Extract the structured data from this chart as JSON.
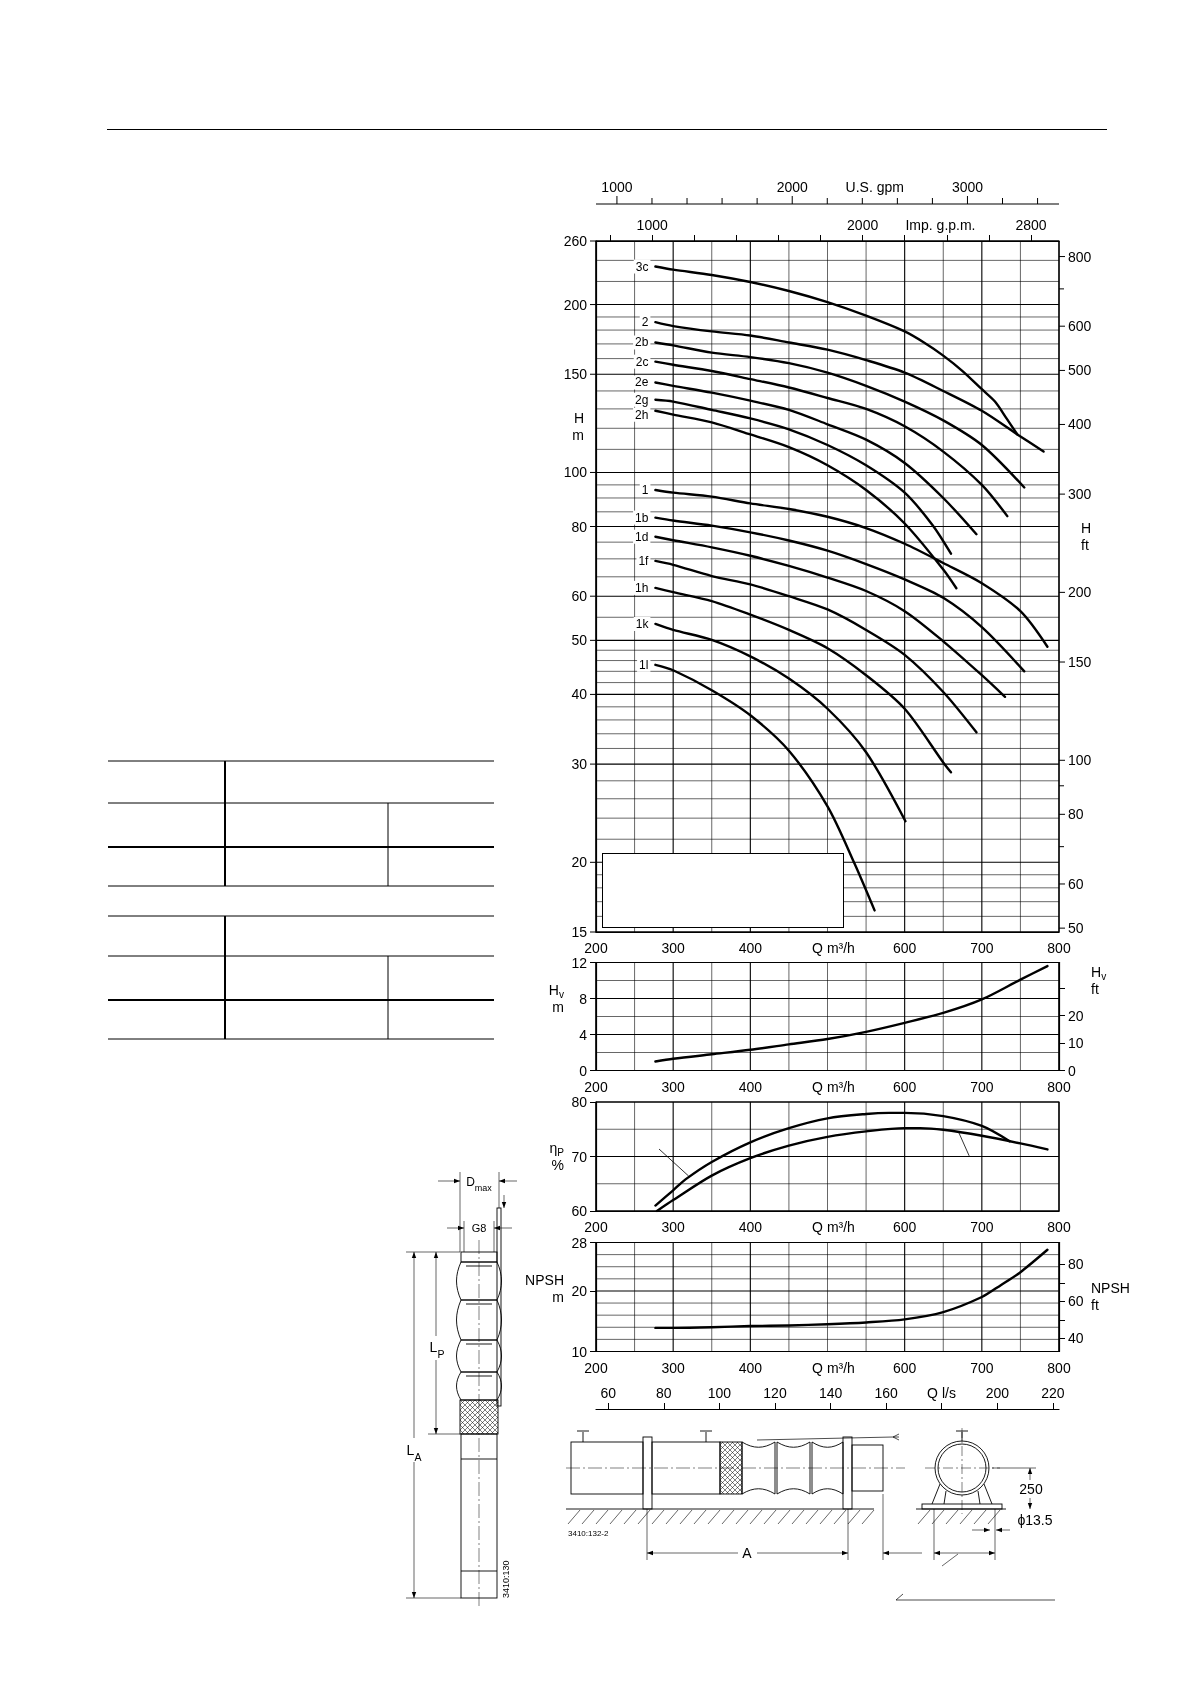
{
  "chart_data": [
    {
      "type": "line",
      "xlabel": "Q m³/h",
      "ylabel": "H\nm",
      "x2label": "Imp. g.p.m.",
      "log": true,
      "grid": true,
      "xlim": [
        200,
        800
      ],
      "xticks": [
        200,
        {
          "value": 250,
          "label": null
        },
        300,
        {
          "value": 350,
          "label": null
        },
        400,
        {
          "value": 450,
          "label": null
        },
        {
          "value": 500,
          "label": null
        },
        {
          "value": 550,
          "label": null
        },
        600,
        {
          "value": 650,
          "label": null
        },
        700,
        {
          "value": 750,
          "label": null
        },
        800
      ],
      "ylim": [
        15,
        260
      ],
      "yticks": [
        15,
        {
          "value": 16,
          "label": null
        },
        {
          "value": 17,
          "label": null
        },
        {
          "value": 18,
          "label": null
        },
        {
          "value": 19,
          "label": null
        },
        20,
        {
          "value": 22,
          "label": null
        },
        {
          "value": 24,
          "label": null
        },
        {
          "value": 26,
          "label": null
        },
        {
          "value": 28,
          "label": null
        },
        30,
        {
          "value": 32,
          "label": null
        },
        {
          "value": 34,
          "label": null
        },
        {
          "value": 36,
          "label": null
        },
        {
          "value": 38,
          "label": null
        },
        40,
        {
          "value": 42,
          "label": null
        },
        {
          "value": 44,
          "label": null
        },
        {
          "value": 46,
          "label": null
        },
        {
          "value": 48,
          "label": null
        },
        50,
        {
          "value": 55,
          "label": null
        },
        60,
        {
          "value": 65,
          "label": null
        },
        {
          "value": 70,
          "label": null
        },
        {
          "value": 75,
          "label": null
        },
        80,
        {
          "value": 85,
          "label": null
        },
        {
          "value": 90,
          "label": null
        },
        {
          "value": 95,
          "label": null
        },
        100,
        {
          "value": 110,
          "label": null
        },
        {
          "value": 120,
          "label": null
        },
        {
          "value": 130,
          "label": null
        },
        {
          "value": 140,
          "label": null
        },
        150,
        {
          "value": 160,
          "label": null
        },
        {
          "value": 170,
          "label": null
        },
        {
          "value": 180,
          "label": null
        },
        {
          "value": 190,
          "label": null
        },
        200,
        {
          "value": 220,
          "label": null
        },
        {
          "value": 240,
          "label": null
        },
        260
      ],
      "x2lim": [
        733,
        2933
      ],
      "x2ticks": [
        {
          "value": 800,
          "label": null
        },
        1000,
        {
          "value": 1200,
          "label": null
        },
        {
          "value": 1400,
          "label": null
        },
        {
          "value": 1600,
          "label": null
        },
        {
          "value": 1800,
          "label": null
        },
        2000,
        {
          "value": 2200,
          "label": null
        },
        {
          "value": 2400,
          "label": null
        },
        {
          "value": 2600,
          "label": null
        },
        2800
      ],
      "annotations": [
        "U.S. gpm",
        "1000",
        "2000",
        "3000",
        "H\nft",
        "800",
        "600",
        "500",
        "400",
        "300",
        "200",
        "150",
        "100",
        "80",
        "60",
        "50"
      ],
      "series": [
        {
          "name": "3c",
          "color": "#000000",
          "x": [
            277,
            300,
            350,
            400,
            450,
            500,
            550,
            600,
            625,
            650,
            675,
            700,
            717,
            732,
            746
          ],
          "values": [
            234,
            231,
            226,
            219.5,
            211.5,
            202,
            191,
            179,
            171,
            162,
            152,
            141,
            134,
            125,
            117
          ]
        },
        {
          "name": "2",
          "color": "#000000",
          "x": [
            277,
            300,
            350,
            400,
            450,
            500,
            550,
            600,
            650,
            700,
            746,
            780
          ],
          "values": [
            186,
            183,
            179,
            176,
            171,
            166,
            159,
            151,
            140,
            129,
            117,
            109
          ]
        },
        {
          "name": "2b",
          "color": "#000000",
          "x": [
            277,
            300,
            350,
            400,
            450,
            500,
            550,
            600,
            650,
            700,
            755
          ],
          "values": [
            171,
            169,
            164,
            161,
            157,
            151,
            143,
            134,
            124,
            112,
            94
          ]
        },
        {
          "name": "2c",
          "color": "#000000",
          "x": [
            277,
            300,
            350,
            400,
            450,
            500,
            550,
            600,
            650,
            700,
            733
          ],
          "values": [
            158,
            156,
            152,
            147,
            142,
            136,
            130,
            121,
            109,
            95,
            83.5
          ]
        },
        {
          "name": "2e",
          "color": "#000000",
          "x": [
            277,
            300,
            350,
            400,
            450,
            500,
            550,
            600,
            650,
            693
          ],
          "values": [
            145,
            143,
            139,
            134.5,
            129.5,
            122,
            114.5,
            104,
            90,
            77.5
          ]
        },
        {
          "name": "2g",
          "color": "#000000",
          "x": [
            277,
            300,
            350,
            400,
            450,
            500,
            550,
            600,
            636,
            660
          ],
          "values": [
            135,
            134,
            129.5,
            125,
            119.5,
            112,
            103,
            92,
            80.5,
            71.5
          ]
        },
        {
          "name": "2h",
          "color": "#000000",
          "x": [
            277,
            300,
            350,
            400,
            450,
            500,
            550,
            600,
            650,
            667
          ],
          "values": [
            129,
            127,
            123,
            117,
            111,
            103,
            93,
            81,
            67,
            62
          ]
        },
        {
          "name": "1",
          "color": "#000000",
          "x": [
            277,
            300,
            350,
            400,
            450,
            500,
            550,
            600,
            650,
            700,
            750,
            785
          ],
          "values": [
            93,
            92,
            90.5,
            88,
            86,
            83.3,
            79.5,
            74.5,
            68.8,
            63.3,
            56.4,
            48.7
          ]
        },
        {
          "name": "1b",
          "color": "#000000",
          "x": [
            277,
            300,
            350,
            400,
            450,
            500,
            550,
            600,
            650,
            700,
            755
          ],
          "values": [
            83,
            82,
            80.3,
            78.1,
            75.5,
            72.4,
            68.5,
            64.3,
            59.6,
            52.8,
            44
          ]
        },
        {
          "name": "1d",
          "color": "#000000",
          "x": [
            277,
            300,
            350,
            400,
            450,
            500,
            550,
            600,
            650,
            700,
            730
          ],
          "values": [
            76.7,
            75.6,
            73.4,
            70.9,
            68,
            64.8,
            61.3,
            56.4,
            49.8,
            43.3,
            39.6
          ]
        },
        {
          "name": "1f",
          "color": "#000000",
          "x": [
            277,
            300,
            350,
            400,
            450,
            500,
            550,
            600,
            650,
            693
          ],
          "values": [
            69.4,
            68.3,
            65.2,
            63,
            60,
            56.8,
            52.2,
            47.1,
            40.4,
            34.2
          ]
        },
        {
          "name": "1h",
          "color": "#000000",
          "x": [
            277,
            300,
            350,
            400,
            450,
            500,
            550,
            600,
            650,
            660
          ],
          "values": [
            62.1,
            61,
            58.8,
            55.6,
            52.2,
            48.4,
            43.3,
            37.7,
            30.2,
            29
          ]
        },
        {
          "name": "1k",
          "color": "#000000",
          "x": [
            277,
            300,
            350,
            400,
            450,
            500,
            550,
            601
          ],
          "values": [
            53.5,
            52.2,
            50.1,
            46.8,
            42.7,
            37.7,
            31.5,
            23.7
          ]
        },
        {
          "name": "1l",
          "color": "#000000",
          "x": [
            277,
            300,
            350,
            400,
            450,
            500,
            535,
            561
          ],
          "values": [
            45.2,
            44.2,
            40.7,
            36.7,
            31.7,
            25.2,
            19.9,
            16.4
          ]
        }
      ]
    },
    {
      "type": "line",
      "xlabel": "Q m³/h",
      "ylabel": "H$_{v}$\nm",
      "y2label": "H$_{v}$\nft",
      "grid": true,
      "xlim": [
        200,
        800
      ],
      "xticks": [
        200,
        {
          "value": 250,
          "label": null
        },
        300,
        {
          "value": 350,
          "label": null
        },
        400,
        {
          "value": 450,
          "label": null
        },
        {
          "value": 500,
          "label": null
        },
        {
          "value": 550,
          "label": null
        },
        600,
        {
          "value": 650,
          "label": null
        },
        700,
        {
          "value": 750,
          "label": null
        },
        800
      ],
      "ylim": [
        0,
        12
      ],
      "yticks": [
        0,
        {
          "value": 2,
          "label": null
        },
        4,
        {
          "value": 6,
          "label": null
        },
        8,
        {
          "value": 10,
          "label": null
        },
        12
      ],
      "y2lim": [
        0,
        39.4
      ],
      "y2ticks": [
        0,
        10,
        20,
        {
          "value": 30,
          "label": null
        }
      ],
      "series": [
        {
          "color": "#000000",
          "x": [
            277,
            300,
            350,
            400,
            450,
            500,
            550,
            600,
            650,
            700,
            750,
            785
          ],
          "values": [
            1,
            1.3,
            1.8,
            2.3,
            2.9,
            3.5,
            4.3,
            5.3,
            6.4,
            7.9,
            10.1,
            11.6
          ]
        }
      ]
    },
    {
      "type": "line",
      "xlabel": "Q m³/h",
      "ylabel": "η$_{P}$\n%",
      "grid": true,
      "xlim": [
        200,
        800
      ],
      "xticks": [
        200,
        {
          "value": 250,
          "label": null
        },
        300,
        {
          "value": 350,
          "label": null
        },
        400,
        {
          "value": 450,
          "label": null
        },
        {
          "value": 500,
          "label": null
        },
        {
          "value": 550,
          "label": null
        },
        600,
        {
          "value": 650,
          "label": null
        },
        700,
        {
          "value": 750,
          "label": null
        },
        800
      ],
      "ylim": [
        60,
        80
      ],
      "yticks": [
        60,
        {
          "value": 65,
          "label": null
        },
        70,
        {
          "value": 75,
          "label": null
        },
        80
      ],
      "series": [
        {
          "color": "#000000",
          "x": [
            277,
            300,
            316,
            350,
            400,
            450,
            500,
            550,
            580,
            600,
            650,
            700,
            736
          ],
          "values": [
            61,
            63.8,
            65.8,
            69,
            72.6,
            75.2,
            77,
            77.8,
            78,
            78,
            77.4,
            75.6,
            72.8
          ]
        },
        {
          "color": "#000000",
          "x": [
            279,
            300,
            350,
            400,
            450,
            500,
            550,
            600,
            620,
            650,
            700,
            750,
            785
          ],
          "values": [
            60,
            62,
            66.5,
            69.7,
            72,
            73.6,
            74.6,
            75.2,
            75.2,
            74.9,
            73.8,
            72.4,
            71.3
          ]
        }
      ]
    },
    {
      "type": "line",
      "xlabel": "Q m³/h",
      "ylabel": "NPSH\nm",
      "y2label": "NPSH\nft",
      "x2label": "Q l/s",
      "grid": true,
      "xlim": [
        200,
        800
      ],
      "xticks": [
        200,
        {
          "value": 250,
          "label": null
        },
        300,
        {
          "value": 350,
          "label": null
        },
        400,
        {
          "value": 450,
          "label": null
        },
        {
          "value": 500,
          "label": null
        },
        {
          "value": 550,
          "label": null
        },
        600,
        {
          "value": 650,
          "label": null
        },
        700,
        {
          "value": 750,
          "label": null
        },
        800
      ],
      "ylim": [
        10,
        28
      ],
      "yticks": [
        10,
        {
          "value": 12,
          "label": null
        },
        {
          "value": 14,
          "label": null
        },
        {
          "value": 16,
          "label": null
        },
        {
          "value": 18,
          "label": null
        },
        20,
        {
          "value": 22,
          "label": null
        },
        {
          "value": 24,
          "label": null
        },
        {
          "value": 26,
          "label": null
        },
        28
      ],
      "y2lim": [
        32.8,
        91.9
      ],
      "y2ticks": [
        40,
        {
          "value": 50,
          "label": null
        },
        60,
        {
          "value": 70,
          "label": null
        },
        80
      ],
      "x2lim": [
        55.6,
        222.2
      ],
      "x2ticks": [
        60,
        80,
        100,
        120,
        140,
        160,
        {
          "value": 180,
          "label": null
        },
        200,
        220
      ],
      "series": [
        {
          "color": "#000000",
          "x": [
            277,
            300,
            350,
            400,
            450,
            500,
            550,
            600,
            650,
            700,
            725,
            750,
            785
          ],
          "values": [
            13.9,
            13.9,
            14,
            14.2,
            14.3,
            14.5,
            14.8,
            15.3,
            16.5,
            19,
            21,
            23.1,
            26.8
          ]
        }
      ]
    },
    {
      "type": "other",
      "annotations": [
        "D$_{max}$",
        "G8",
        "L$_{P}$",
        "L$_{A}$",
        "3410:130",
        "3410:132-2",
        "A",
        "250",
        "ϕ13.5"
      ]
    }
  ]
}
